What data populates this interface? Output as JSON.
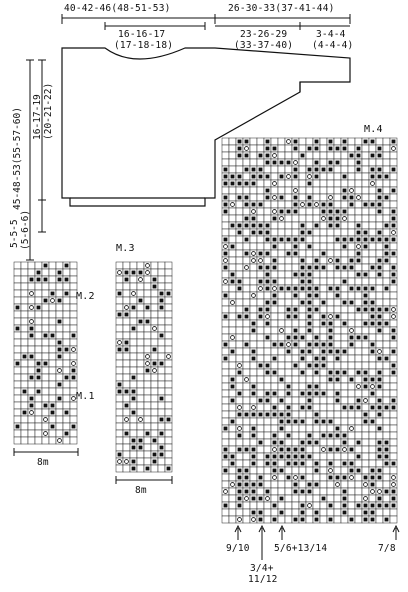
{
  "measurements": {
    "top_left_width": "40-42-46(48-51-53)",
    "top_right_width": "26-30-33(37-41-44)",
    "neck_width_line1": "16-16-17",
    "neck_width_line2": "(17-18-18)",
    "sleeve_width_line1": "23-26-29",
    "sleeve_width_line2": "(33-37-40)",
    "cuff_line1": "3-4-4",
    "cuff_line2": "(4-4-4)",
    "total_length": "45-48-53(55-57-60)",
    "yoke_line1": "16-17-19",
    "yoke_line2": "(20-21-22)",
    "rib_line1": "5-5-5",
    "rib_line2": "(5-6-6)"
  },
  "charts": {
    "m2_label": "M.2",
    "m1_label": "M.1",
    "m3_label": "M.3",
    "m4_label": "M.4",
    "left_repeat": "8m",
    "middle_repeat": "8m"
  },
  "size_markers": {
    "marker_1": "9/10",
    "marker_2_line1": "3/4+",
    "marker_2_line2": "11/12",
    "marker_3": "5/6+13/14",
    "marker_4": "7/8"
  }
}
